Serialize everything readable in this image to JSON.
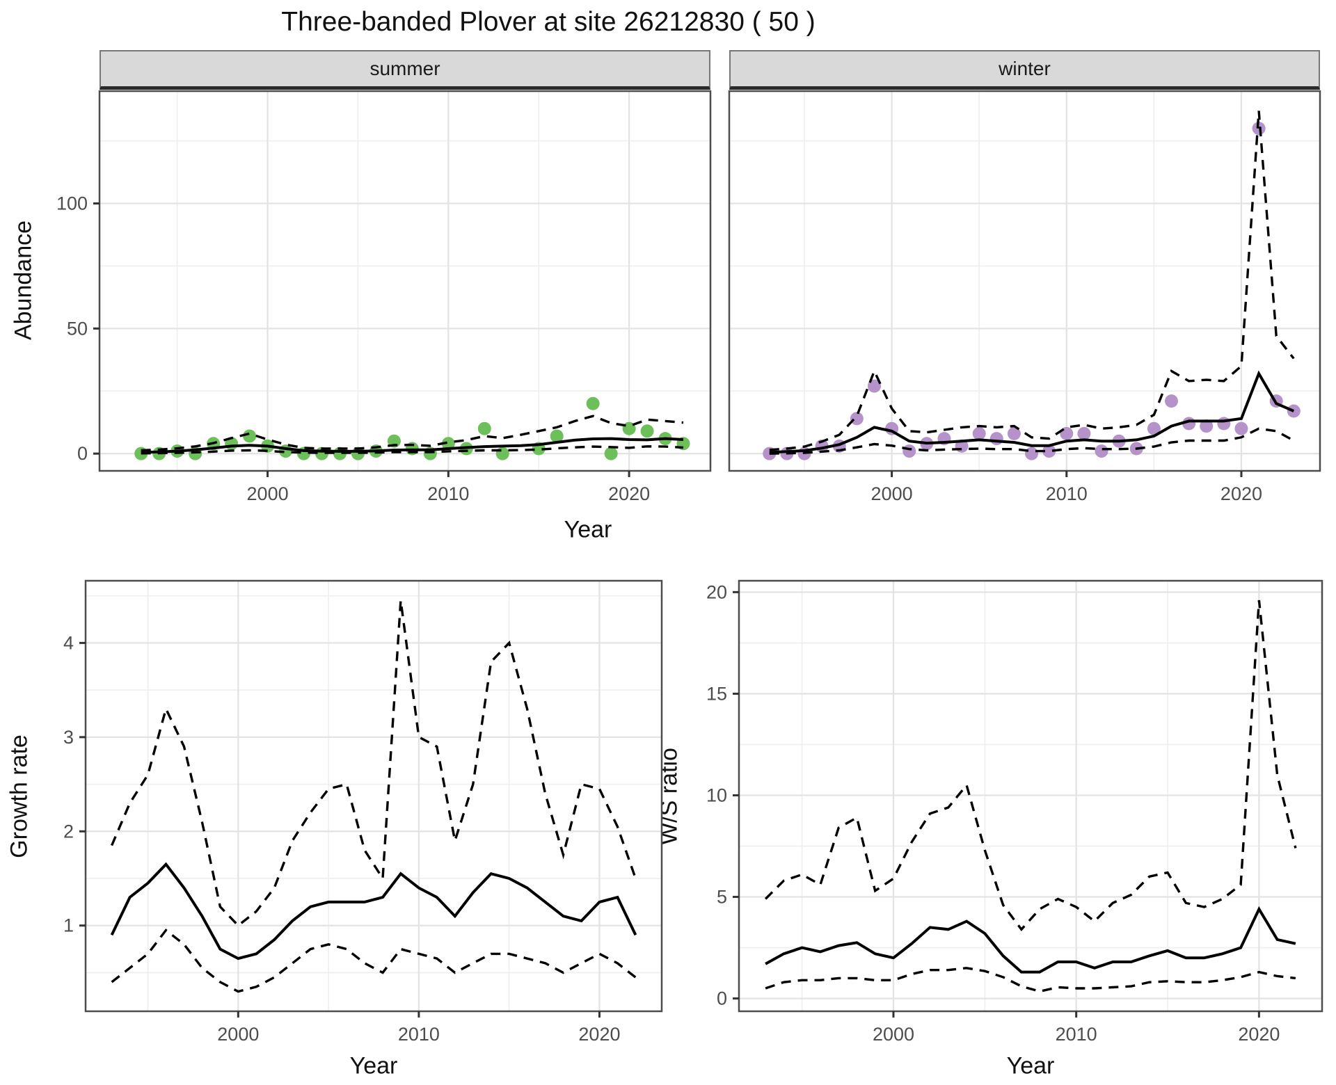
{
  "title": "Three-banded Plover at site 26212830 ( 50 )",
  "strips": {
    "summer": "summer",
    "winter": "winter"
  },
  "axes": {
    "abundance": "Abundance",
    "year_top": "Year",
    "growth_rate": "Growth rate",
    "ws_ratio": "W/S ratio",
    "year_bottom_left": "Year",
    "year_bottom_right": "Year"
  },
  "colors": {
    "summer_point": "#6cbf59",
    "winter_point": "#b592c9",
    "line": "#000000",
    "grid_major": "#e3e3e3",
    "grid_minor": "#efefef",
    "strip_bg": "#d9d9d9",
    "panel_border": "#4d4d4d",
    "tick_label": "#4d4d4d"
  },
  "chart_data": [
    {
      "id": "summer",
      "type": "line",
      "title": "summer",
      "xlabel": "Year",
      "ylabel": "Abundance",
      "xlim": [
        1990.7,
        2024.5
      ],
      "ylim": [
        -6.9,
        144.9
      ],
      "xticks": [
        2000,
        2010,
        2020
      ],
      "xticks_minor": [
        1995,
        2005,
        2015
      ],
      "yticks": [
        0,
        50,
        100
      ],
      "yticks_minor": [
        25,
        75,
        125
      ],
      "x": [
        1993,
        1994,
        1995,
        1996,
        1997,
        1998,
        1999,
        2000,
        2001,
        2002,
        2003,
        2004,
        2005,
        2006,
        2007,
        2008,
        2009,
        2010,
        2011,
        2012,
        2013,
        2014,
        2015,
        2016,
        2017,
        2018,
        2019,
        2020,
        2021,
        2022,
        2023
      ],
      "series": [
        {
          "name": "observed_counts",
          "style": "points",
          "color": "#6cbf59",
          "values": [
            0,
            0,
            1,
            0,
            4,
            4,
            7,
            3,
            1,
            0,
            0,
            0,
            0,
            1,
            5,
            2,
            0,
            4,
            2,
            10,
            0,
            null,
            2,
            7,
            null,
            20,
            0,
            10,
            9,
            6,
            4
          ]
        },
        {
          "name": "fitted_mean",
          "style": "solid",
          "values": [
            0.5,
            0.7,
            1.0,
            1.5,
            2.2,
            3.0,
            3.3,
            3.0,
            2.0,
            1.2,
            1.0,
            0.9,
            0.9,
            1.1,
            1.4,
            1.5,
            1.5,
            2.0,
            2.4,
            2.8,
            3.0,
            3.2,
            3.6,
            4.5,
            5.4,
            5.9,
            6.0,
            5.6,
            5.5,
            6.0,
            5.6
          ]
        },
        {
          "name": "upper_ci",
          "style": "dashed",
          "values": [
            1.3,
            1.6,
            2.1,
            2.9,
            4.2,
            6.2,
            8.0,
            5.6,
            3.6,
            2.3,
            2.0,
            2.0,
            2.0,
            2.5,
            3.4,
            3.5,
            3.1,
            4.5,
            5.4,
            7.0,
            6.2,
            7.5,
            9.0,
            10.5,
            13.0,
            15.0,
            12.2,
            11.0,
            13.6,
            13.0,
            12.4
          ]
        },
        {
          "name": "lower_ci",
          "style": "dashed",
          "values": [
            0.1,
            0.2,
            0.3,
            0.5,
            0.8,
            1.2,
            1.3,
            1.1,
            0.6,
            0.4,
            0.3,
            0.3,
            0.3,
            0.4,
            0.6,
            0.6,
            0.6,
            0.9,
            1.1,
            1.3,
            1.3,
            1.4,
            1.6,
            2.1,
            2.5,
            2.8,
            2.6,
            2.3,
            2.9,
            2.8,
            2.4
          ]
        }
      ]
    },
    {
      "id": "winter",
      "type": "line",
      "title": "winter",
      "xlabel": "Year",
      "ylabel": "Abundance",
      "xlim": [
        1990.7,
        2024.5
      ],
      "ylim": [
        -6.9,
        144.9
      ],
      "xticks": [
        2000,
        2010,
        2020
      ],
      "xticks_minor": [
        1995,
        2005,
        2015
      ],
      "yticks": [
        0,
        50,
        100
      ],
      "yticks_minor": [
        25,
        75,
        125
      ],
      "x": [
        1993,
        1994,
        1995,
        1996,
        1997,
        1998,
        1999,
        2000,
        2001,
        2002,
        2003,
        2004,
        2005,
        2006,
        2007,
        2008,
        2009,
        2010,
        2011,
        2012,
        2013,
        2014,
        2015,
        2016,
        2017,
        2018,
        2019,
        2020,
        2021,
        2022,
        2023
      ],
      "series": [
        {
          "name": "observed_counts",
          "style": "points",
          "color": "#b592c9",
          "values": [
            0,
            0,
            0,
            3,
            3,
            14,
            27,
            10,
            1,
            4,
            6,
            3,
            8,
            6,
            8,
            0,
            1,
            8,
            8,
            1,
            5,
            2,
            10,
            21,
            12,
            11,
            12,
            10,
            130,
            21,
            17
          ]
        },
        {
          "name": "fitted_mean",
          "style": "solid",
          "values": [
            0.5,
            0.8,
            1.2,
            2.2,
            3.6,
            6.5,
            10.5,
            9.0,
            5.0,
            4.2,
            4.5,
            5.0,
            5.5,
            5.0,
            4.5,
            3.2,
            3.2,
            5.0,
            5.5,
            5.0,
            5.0,
            5.5,
            7.0,
            11.0,
            13.0,
            13.0,
            13.0,
            14.0,
            32.0,
            20.0,
            17.0
          ]
        },
        {
          "name": "upper_ci",
          "style": "dashed",
          "values": [
            1.5,
            2.0,
            2.8,
            4.8,
            7.5,
            15.0,
            33.0,
            18.0,
            9.0,
            8.5,
            9.5,
            10.5,
            11.0,
            10.5,
            11.0,
            6.5,
            6.0,
            10.5,
            11.5,
            10.0,
            10.5,
            11.5,
            15.5,
            33.0,
            29.0,
            29.5,
            29.0,
            35.0,
            137.0,
            47.0,
            38.0
          ]
        },
        {
          "name": "lower_ci",
          "style": "dashed",
          "values": [
            0.0,
            0.1,
            0.3,
            0.8,
            1.3,
            2.5,
            3.8,
            3.2,
            1.8,
            1.3,
            1.6,
            1.8,
            2.0,
            1.8,
            1.8,
            1.0,
            1.0,
            1.8,
            2.2,
            1.8,
            1.8,
            2.0,
            2.8,
            4.5,
            5.2,
            5.2,
            5.2,
            6.5,
            10.0,
            9.0,
            5.2
          ]
        }
      ]
    },
    {
      "id": "growth",
      "type": "line",
      "title": "Growth rate",
      "xlabel": "Year",
      "ylabel": "Growth rate",
      "xlim": [
        1991.55,
        2023.45
      ],
      "ylim": [
        0.09,
        4.66
      ],
      "xticks": [
        2000,
        2010,
        2020
      ],
      "xticks_minor": [
        1995,
        2005,
        2015
      ],
      "yticks": [
        1,
        2,
        3,
        4
      ],
      "yticks_minor": [
        0.5,
        1.5,
        2.5,
        3.5,
        4.5
      ],
      "x": [
        1993,
        1994,
        1995,
        1996,
        1997,
        1998,
        1999,
        2000,
        2001,
        2002,
        2003,
        2004,
        2005,
        2006,
        2007,
        2008,
        2009,
        2010,
        2011,
        2012,
        2013,
        2014,
        2015,
        2016,
        2017,
        2018,
        2019,
        2020,
        2021,
        2022
      ],
      "series": [
        {
          "name": "mean",
          "style": "solid",
          "values": [
            0.9,
            1.3,
            1.45,
            1.65,
            1.4,
            1.1,
            0.75,
            0.65,
            0.7,
            0.85,
            1.05,
            1.2,
            1.25,
            1.25,
            1.25,
            1.3,
            1.55,
            1.4,
            1.3,
            1.1,
            1.35,
            1.55,
            1.5,
            1.4,
            1.25,
            1.1,
            1.05,
            1.25,
            1.3,
            0.9
          ]
        },
        {
          "name": "upper_ci",
          "style": "dashed",
          "values": [
            1.85,
            2.3,
            2.6,
            3.3,
            2.9,
            2.1,
            1.2,
            1.0,
            1.15,
            1.4,
            1.9,
            2.2,
            2.45,
            2.5,
            1.8,
            1.5,
            4.45,
            3.0,
            2.9,
            1.9,
            2.5,
            3.8,
            4.0,
            3.3,
            2.4,
            1.75,
            2.5,
            2.45,
            2.05,
            1.5
          ]
        },
        {
          "name": "lower_ci",
          "style": "dashed",
          "values": [
            0.4,
            0.55,
            0.7,
            0.95,
            0.8,
            0.55,
            0.4,
            0.3,
            0.35,
            0.45,
            0.6,
            0.75,
            0.8,
            0.75,
            0.6,
            0.5,
            0.75,
            0.7,
            0.65,
            0.5,
            0.6,
            0.7,
            0.7,
            0.65,
            0.6,
            0.5,
            0.6,
            0.7,
            0.6,
            0.45
          ]
        }
      ]
    },
    {
      "id": "ws",
      "type": "line",
      "title": "W/S ratio",
      "xlabel": "Year",
      "ylabel": "W/S ratio",
      "xlim": [
        1991.55,
        2023.45
      ],
      "ylim": [
        -0.63,
        20.56
      ],
      "xticks": [
        2000,
        2010,
        2020
      ],
      "xticks_minor": [
        1995,
        2005,
        2015
      ],
      "yticks": [
        0,
        5,
        10,
        15,
        20
      ],
      "yticks_minor": [
        2.5,
        7.5,
        12.5,
        17.5
      ],
      "x": [
        1993,
        1994,
        1995,
        1996,
        1997,
        1998,
        1999,
        2000,
        2001,
        2002,
        2003,
        2004,
        2005,
        2006,
        2007,
        2008,
        2009,
        2010,
        2011,
        2012,
        2013,
        2014,
        2015,
        2016,
        2017,
        2018,
        2019,
        2020,
        2021,
        2022
      ],
      "series": [
        {
          "name": "mean",
          "style": "solid",
          "values": [
            1.7,
            2.2,
            2.5,
            2.3,
            2.6,
            2.75,
            2.2,
            2.0,
            2.7,
            3.5,
            3.4,
            3.8,
            3.2,
            2.1,
            1.3,
            1.3,
            1.8,
            1.8,
            1.5,
            1.8,
            1.8,
            2.1,
            2.35,
            2.0,
            2.0,
            2.2,
            2.5,
            4.4,
            2.9,
            2.7
          ]
        },
        {
          "name": "upper_ci",
          "style": "dashed",
          "values": [
            4.9,
            5.8,
            6.1,
            5.6,
            8.4,
            8.9,
            5.3,
            5.9,
            7.7,
            9.1,
            9.4,
            10.5,
            7.3,
            4.6,
            3.4,
            4.4,
            4.9,
            4.5,
            3.8,
            4.7,
            5.1,
            6.0,
            6.2,
            4.7,
            4.5,
            4.9,
            5.6,
            19.6,
            11.0,
            7.4
          ]
        },
        {
          "name": "lower_ci",
          "style": "dashed",
          "values": [
            0.5,
            0.8,
            0.9,
            0.9,
            1.0,
            1.0,
            0.9,
            0.9,
            1.2,
            1.4,
            1.4,
            1.5,
            1.35,
            1.05,
            0.6,
            0.35,
            0.55,
            0.5,
            0.5,
            0.55,
            0.6,
            0.8,
            0.85,
            0.8,
            0.8,
            0.9,
            1.05,
            1.3,
            1.1,
            1.0
          ]
        }
      ]
    }
  ]
}
